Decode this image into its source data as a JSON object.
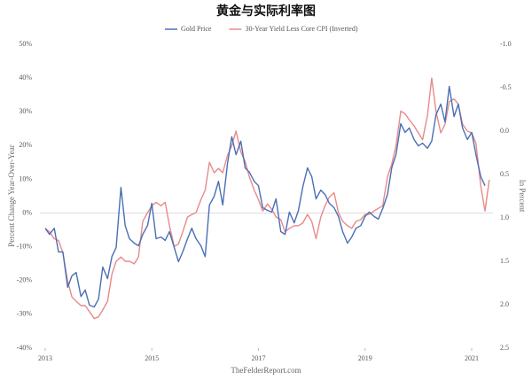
{
  "chart_data": {
    "type": "line",
    "title": "黄金与实际利率图",
    "y_label": "Percent Change Year-Over-Year",
    "y2_label": "In Percent",
    "source": "TheFelderReport.com",
    "x": [
      2013,
      2013.08,
      2013.17,
      2013.25,
      2013.33,
      2013.42,
      2013.5,
      2013.58,
      2013.67,
      2013.75,
      2013.83,
      2013.92,
      2014,
      2014.08,
      2014.17,
      2014.25,
      2014.33,
      2014.42,
      2014.5,
      2014.58,
      2014.67,
      2014.75,
      2014.83,
      2014.92,
      2015,
      2015.08,
      2015.17,
      2015.25,
      2015.33,
      2015.42,
      2015.5,
      2015.58,
      2015.67,
      2015.75,
      2015.83,
      2015.92,
      2016,
      2016.08,
      2016.17,
      2016.25,
      2016.33,
      2016.42,
      2016.5,
      2016.58,
      2016.67,
      2016.75,
      2016.83,
      2016.92,
      2017,
      2017.08,
      2017.17,
      2017.25,
      2017.33,
      2017.42,
      2017.5,
      2017.58,
      2017.67,
      2017.75,
      2017.83,
      2017.92,
      2018,
      2018.08,
      2018.17,
      2018.25,
      2018.33,
      2018.42,
      2018.5,
      2018.58,
      2018.67,
      2018.75,
      2018.83,
      2018.92,
      2019,
      2019.08,
      2019.17,
      2019.25,
      2019.33,
      2019.42,
      2019.5,
      2019.58,
      2019.67,
      2019.75,
      2019.83,
      2019.92,
      2020,
      2020.08,
      2020.17,
      2020.25,
      2020.33,
      2020.42,
      2020.5,
      2020.58,
      2020.67,
      2020.75,
      2020.83,
      2020.92,
      2021,
      2021.08,
      2021.17,
      2021.25,
      2021.33
    ],
    "series": [
      {
        "name": "Gold Price",
        "color": "#4a6fb5",
        "values": [
          -4.5,
          -6.3,
          -4.5,
          -11.5,
          -11.5,
          -22,
          -18.6,
          -17.6,
          -24.7,
          -22.8,
          -27.3,
          -27.8,
          -25.5,
          -16,
          -19.4,
          -12.9,
          -10.2,
          7.6,
          -3.7,
          -7.6,
          -8.9,
          -9.7,
          -6.3,
          -3.7,
          2.9,
          -7.6,
          -7.1,
          -8.1,
          -5.5,
          -10.2,
          -14.4,
          -11.5,
          -7.6,
          -4.5,
          -7.6,
          -9.7,
          -12.9,
          2.4,
          5,
          9.4,
          2.4,
          14.7,
          22.6,
          17.3,
          21.3,
          13.4,
          12.1,
          9.4,
          8.1,
          1.6,
          0.8,
          0.3,
          4.2,
          -5.5,
          -6.3,
          0.3,
          -2.9,
          0.8,
          7.6,
          13.4,
          10.8,
          4.2,
          6.8,
          5.5,
          2.9,
          1.6,
          -1,
          -5.5,
          -8.9,
          -7.1,
          -4.5,
          -3.7,
          -1,
          0.3,
          -1,
          -1.8,
          1.3,
          5.5,
          13.4,
          17.3,
          26.5,
          23.9,
          25.2,
          21.8,
          19.9,
          20.7,
          19.2,
          21.3,
          29.1,
          32.3,
          27,
          37.5,
          28.6,
          32.3,
          25.2,
          21.8,
          23.9,
          17.3,
          10.8,
          8.1,
          null
        ]
      },
      {
        "name": "30-Year Yield Less Core CPI (Inverted)",
        "color": "#e88a8a",
        "axis": "y2",
        "values": [
          1.12,
          1.16,
          1.24,
          1.26,
          1.4,
          1.73,
          1.91,
          1.96,
          2.01,
          2.01,
          2.08,
          2.16,
          2.14,
          2.06,
          1.96,
          1.65,
          1.5,
          1.45,
          1.5,
          1.5,
          1.53,
          1.45,
          1.04,
          0.94,
          0.86,
          0.82,
          0.86,
          0.82,
          1.09,
          1.33,
          1.3,
          1.16,
          0.99,
          0.96,
          0.94,
          0.79,
          0.68,
          0.36,
          0.48,
          0.43,
          0.48,
          0.28,
          0.17,
          0.0,
          0.24,
          0.35,
          0.53,
          0.68,
          0.79,
          0.92,
          0.84,
          0.9,
          0.99,
          1.02,
          1.16,
          1.12,
          1.09,
          1.09,
          1.06,
          0.96,
          1.04,
          1.24,
          0.99,
          0.86,
          0.76,
          0.71,
          0.94,
          1.04,
          1.09,
          1.12,
          1.04,
          1.02,
          0.96,
          0.96,
          0.92,
          0.89,
          0.86,
          0.53,
          0.38,
          0.17,
          -0.23,
          -0.2,
          -0.13,
          -0.06,
          0.02,
          0.1,
          -0.18,
          -0.61,
          -0.23,
          0.02,
          -0.08,
          -0.34,
          -0.37,
          -0.31,
          -0.08,
          0.0,
          0.02,
          0.14,
          0.63,
          0.92,
          0.56
        ]
      }
    ],
    "xlim": [
      2012.9,
      2021.4
    ],
    "xticks": [
      2013,
      2015,
      2017,
      2019,
      2021
    ],
    "ylim": [
      -40,
      50
    ],
    "yticks": [
      {
        "value": -40,
        "label": "-40%"
      },
      {
        "value": -30,
        "label": "-30%"
      },
      {
        "value": -20,
        "label": "-20%"
      },
      {
        "value": -10,
        "label": "-10%"
      },
      {
        "value": 0,
        "label": "0%"
      },
      {
        "value": 10,
        "label": "10%"
      },
      {
        "value": 20,
        "label": "20%"
      },
      {
        "value": 30,
        "label": "30%"
      },
      {
        "value": 40,
        "label": "40%"
      },
      {
        "value": 50,
        "label": "50%"
      }
    ],
    "y2lim": [
      2.5,
      -1.0
    ],
    "y2ticks": [
      {
        "value": -1,
        "label": "-1.0"
      },
      {
        "value": -0.5,
        "label": "-0.5"
      },
      {
        "value": 0,
        "label": "0.0"
      },
      0.5,
      {
        "value": 1,
        "label": "1.0"
      },
      1.5,
      {
        "value": 2,
        "label": "2.0"
      },
      2.5
    ],
    "legend": "top"
  }
}
